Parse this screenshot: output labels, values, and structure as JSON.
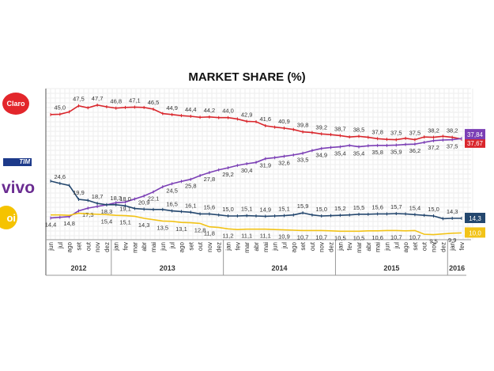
{
  "chart_data": {
    "type": "line",
    "title": "MARKET SHARE (%)",
    "xlabel": "",
    "ylabel": "",
    "ylim": [
      8,
      50
    ],
    "grid": true,
    "legend": "left (operator logos)",
    "years": [
      {
        "label": "2012",
        "months": 7
      },
      {
        "label": "2013",
        "months": 12
      },
      {
        "label": "2014",
        "months": 12
      },
      {
        "label": "2015",
        "months": 12
      },
      {
        "label": "2016",
        "months": 2
      }
    ],
    "categories": [
      "jun",
      "jul",
      "ago",
      "set",
      "out",
      "nov",
      "dez",
      "jan",
      "fev",
      "mar",
      "abr",
      "mai",
      "jun",
      "jul",
      "ago",
      "set",
      "out",
      "nov",
      "dez",
      "jan",
      "fev",
      "mar",
      "abr",
      "mai",
      "jun",
      "jul",
      "ago",
      "set",
      "out",
      "nov",
      "dez",
      "jan",
      "fev",
      "mar",
      "abr",
      "mai",
      "jun",
      "jul",
      "ago",
      "set",
      "out",
      "nov",
      "dez",
      "jan",
      "fev"
    ],
    "series": [
      {
        "name": "Claro",
        "color": "#d9262c",
        "label_pos": "above",
        "values": [
          44.9,
          45.0,
          45.7,
          47.5,
          46.9,
          47.7,
          47.2,
          46.8,
          47.0,
          47.1,
          47.0,
          46.5,
          45.2,
          44.9,
          44.6,
          44.4,
          44.1,
          44.2,
          44.0,
          44.0,
          43.6,
          42.9,
          42.8,
          41.6,
          41.2,
          40.9,
          40.5,
          39.8,
          39.6,
          39.2,
          39.0,
          38.7,
          38.3,
          38.5,
          38.2,
          37.8,
          37.6,
          37.5,
          37.9,
          37.5,
          38.3,
          38.2,
          38.5,
          38.2,
          37.67
        ],
        "labeled": [
          1,
          3,
          5,
          7,
          9,
          11,
          13,
          15,
          17,
          19,
          21,
          23,
          25,
          27,
          29,
          31,
          33,
          35,
          37,
          39,
          41,
          43
        ],
        "end_label": "37,67"
      },
      {
        "name": "Vivo",
        "color": "#7b3fb5",
        "label_pos": "below",
        "values": [
          14.4,
          14.6,
          14.8,
          16.5,
          17.3,
          17.8,
          18.3,
          18.9,
          19.1,
          20.0,
          20.9,
          22.1,
          23.6,
          24.5,
          25.2,
          25.8,
          26.9,
          27.8,
          28.6,
          29.2,
          29.9,
          30.4,
          30.8,
          31.9,
          32.2,
          32.6,
          33.0,
          33.5,
          34.3,
          34.9,
          35.2,
          35.4,
          35.8,
          35.4,
          35.7,
          35.8,
          35.8,
          35.9,
          36.1,
          36.2,
          36.7,
          37.2,
          37.4,
          37.5,
          37.84
        ],
        "labeled": [
          0,
          2,
          4,
          6,
          8,
          10,
          11,
          13,
          15,
          17,
          19,
          21,
          23,
          25,
          27,
          29,
          31,
          33,
          35,
          37,
          39,
          41,
          43
        ],
        "end_label": "37,84"
      },
      {
        "name": "TIM",
        "color": "#24476e",
        "label_pos": "above",
        "values": [
          25.3,
          24.6,
          24.0,
          19.9,
          19.6,
          18.7,
          18.3,
          18.3,
          18.0,
          17.2,
          17.0,
          16.9,
          16.9,
          16.5,
          16.3,
          16.1,
          15.6,
          15.6,
          15.3,
          15.0,
          15.0,
          15.1,
          15.0,
          14.9,
          15.0,
          15.1,
          15.3,
          15.9,
          15.3,
          15.0,
          15.1,
          15.2,
          15.3,
          15.5,
          15.5,
          15.6,
          15.6,
          15.7,
          15.6,
          15.4,
          15.2,
          15.0,
          14.2,
          14.3,
          14.3
        ],
        "labeled": [
          1,
          3,
          5,
          7,
          8,
          13,
          15,
          17,
          19,
          21,
          23,
          25,
          27,
          29,
          31,
          33,
          35,
          37,
          39,
          41,
          43
        ],
        "end_label": "14,3"
      },
      {
        "name": "Oi",
        "color": "#f2c318",
        "label_pos": "below",
        "values": [
          15.3,
          15.3,
          15.2,
          15.8,
          15.6,
          15.5,
          15.4,
          15.2,
          15.1,
          14.9,
          14.3,
          13.9,
          13.5,
          13.4,
          13.1,
          13.0,
          12.8,
          11.8,
          11.6,
          11.2,
          11.0,
          11.1,
          11.1,
          11.1,
          11.0,
          10.9,
          10.8,
          10.7,
          10.7,
          10.7,
          10.6,
          10.5,
          10.5,
          10.5,
          10.6,
          10.6,
          10.7,
          10.7,
          10.6,
          10.7,
          9.6,
          9.5,
          9.7,
          9.9,
          10.0
        ],
        "labeled": [
          6,
          8,
          10,
          12,
          14,
          16,
          17,
          19,
          21,
          23,
          25,
          27,
          29,
          31,
          33,
          35,
          37,
          39,
          41,
          43
        ],
        "end_label": "10,0"
      }
    ]
  },
  "logos": {
    "claro": "Claro",
    "tim": "TIM",
    "vivo": "vivo",
    "oi": "oi"
  }
}
